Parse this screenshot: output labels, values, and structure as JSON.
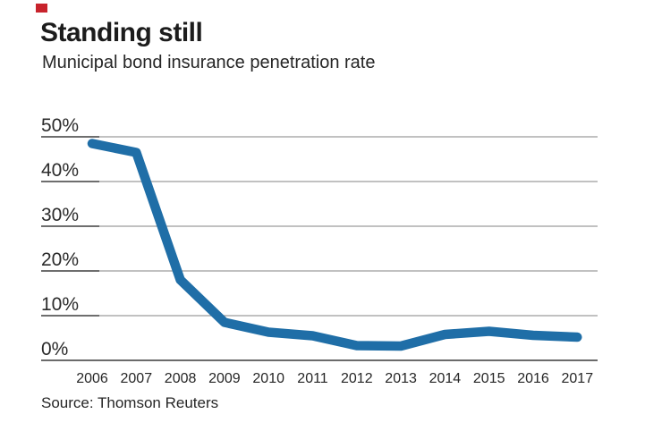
{
  "brand": {
    "mark_color": "#c8232c"
  },
  "header": {
    "title": "Standing still",
    "subtitle": "Municipal bond insurance penetration rate"
  },
  "source": {
    "label": "Source: Thomson Reuters"
  },
  "chart_data": {
    "type": "line",
    "title": "Standing still",
    "subtitle": "Municipal bond insurance penetration rate",
    "x": [
      2006,
      2007,
      2008,
      2009,
      2010,
      2011,
      2012,
      2013,
      2014,
      2015,
      2016,
      2017
    ],
    "series": [
      {
        "name": "Municipal bond insurance penetration rate",
        "values": [
          48.5,
          46.5,
          18.0,
          8.5,
          6.3,
          5.5,
          3.3,
          3.2,
          5.8,
          6.5,
          5.6,
          5.2
        ]
      }
    ],
    "y_ticks": [
      0,
      10,
      20,
      30,
      40,
      50
    ],
    "y_tick_labels": [
      "0%",
      "10%",
      "20%",
      "30%",
      "40%",
      "50%"
    ],
    "x_tick_labels": [
      "2006",
      "2007",
      "2008",
      "2009",
      "2010",
      "2011",
      "2012",
      "2013",
      "2014",
      "2015",
      "2016",
      "2017"
    ],
    "ylim": [
      0,
      50
    ],
    "grid": "horizontal",
    "legend": "none",
    "line_color": "#1f6ea7",
    "grid_color": "#9c9c9c",
    "axis_color": "#3a3a3a",
    "tick_underline_color": "#474747",
    "tick_text_color": "#2b2b2b"
  }
}
